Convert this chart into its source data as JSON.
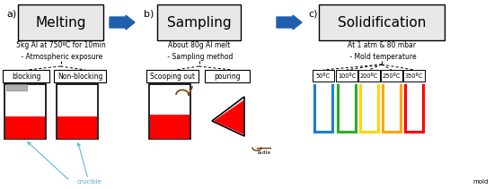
{
  "title_a": "a)",
  "title_b": "b)",
  "title_c": "c)",
  "box_a_label": "Melting",
  "box_b_label": "Sampling",
  "box_c_label": "Solidification",
  "desc_a": "5kg Al at 750ºC for 10min\n - Atmospheric exposure",
  "desc_b": "About 80g Al melt\n - Sampling method",
  "desc_c": "At 1 atm & 80 mbar\n - Mold temperature",
  "sub_labels_a": [
    "blocking",
    "Non-blocking"
  ],
  "sub_labels_b": [
    "Scooping out",
    "pouring"
  ],
  "sub_labels_c": [
    "50ºC",
    "100ºC",
    "200ºC",
    "250ºC",
    "350ºC"
  ],
  "mold_colors": [
    "#1a7fd4",
    "#2AAD27",
    "#FFD700",
    "#FFA500",
    "#FF0000"
  ],
  "background": "#ffffff",
  "arrow_color": "#1F5FAD",
  "text_color": "#000000",
  "red_fill": "#FF0000",
  "gray_fill": "#B0B0B0",
  "box_fill": "#E8E8E8",
  "crucible_arrow_color": "#4aafd4"
}
